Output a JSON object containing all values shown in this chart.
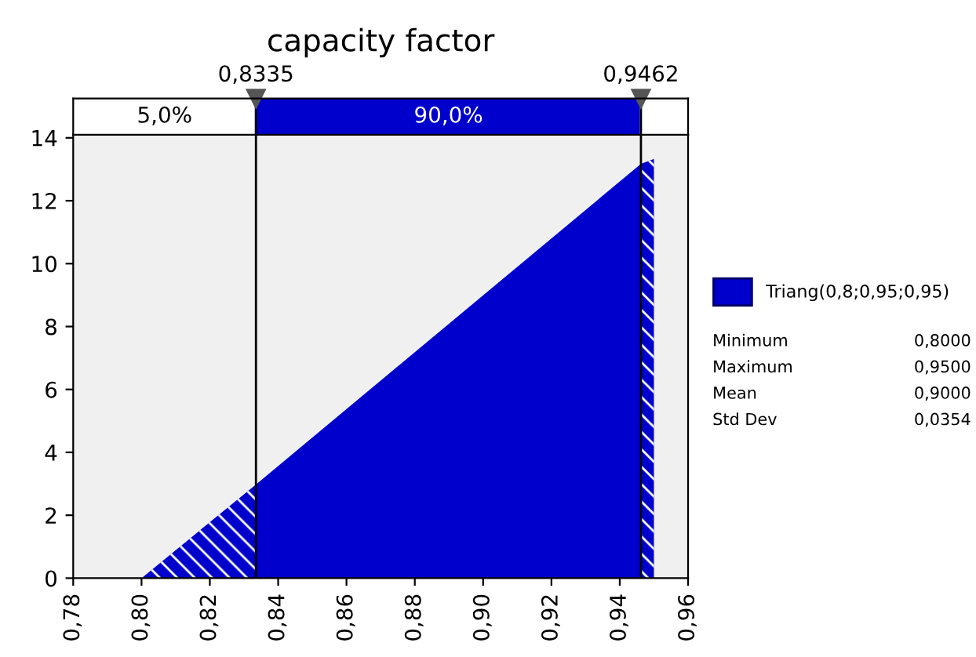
{
  "chart_data": {
    "type": "area",
    "title": "capacity factor",
    "x": [
      0.78,
      0.8,
      0.8335,
      0.9462,
      0.95,
      0.95,
      0.96
    ],
    "series": [
      {
        "name": "Triang(0,8;0,95;0,95)",
        "color": "#0000cc",
        "values": [
          0,
          0,
          2.98,
          13.17,
          13.33,
          0,
          0
        ]
      }
    ],
    "xlim": [
      0.78,
      0.96
    ],
    "xticks": [
      {
        "value": 0.78,
        "label": "0,78"
      },
      {
        "value": 0.8,
        "label": "0,80"
      },
      {
        "value": 0.82,
        "label": "0,82"
      },
      {
        "value": 0.84,
        "label": "0,84"
      },
      {
        "value": 0.86,
        "label": "0,86"
      },
      {
        "value": 0.88,
        "label": "0,88"
      },
      {
        "value": 0.9,
        "label": "0,90"
      },
      {
        "value": 0.92,
        "label": "0,92"
      },
      {
        "value": 0.94,
        "label": "0,94"
      },
      {
        "value": 0.96,
        "label": "0,96"
      }
    ],
    "ylim": [
      0,
      14.1
    ],
    "yticks": [
      0,
      2,
      4,
      6,
      8,
      10,
      12,
      14
    ],
    "ref_lines": [
      {
        "axis": "x",
        "value": 0.8335,
        "label": "0,8335"
      },
      {
        "axis": "x",
        "value": 0.9462,
        "label": "0,9462"
      }
    ],
    "annotations": [
      "5,0%",
      "90,0%",
      "Minimum\t0,8000",
      "Maximum\t0,9500",
      "Mean\t0,9000",
      "Std Dev\t0,0354"
    ],
    "legend": "right",
    "grid": false
  }
}
